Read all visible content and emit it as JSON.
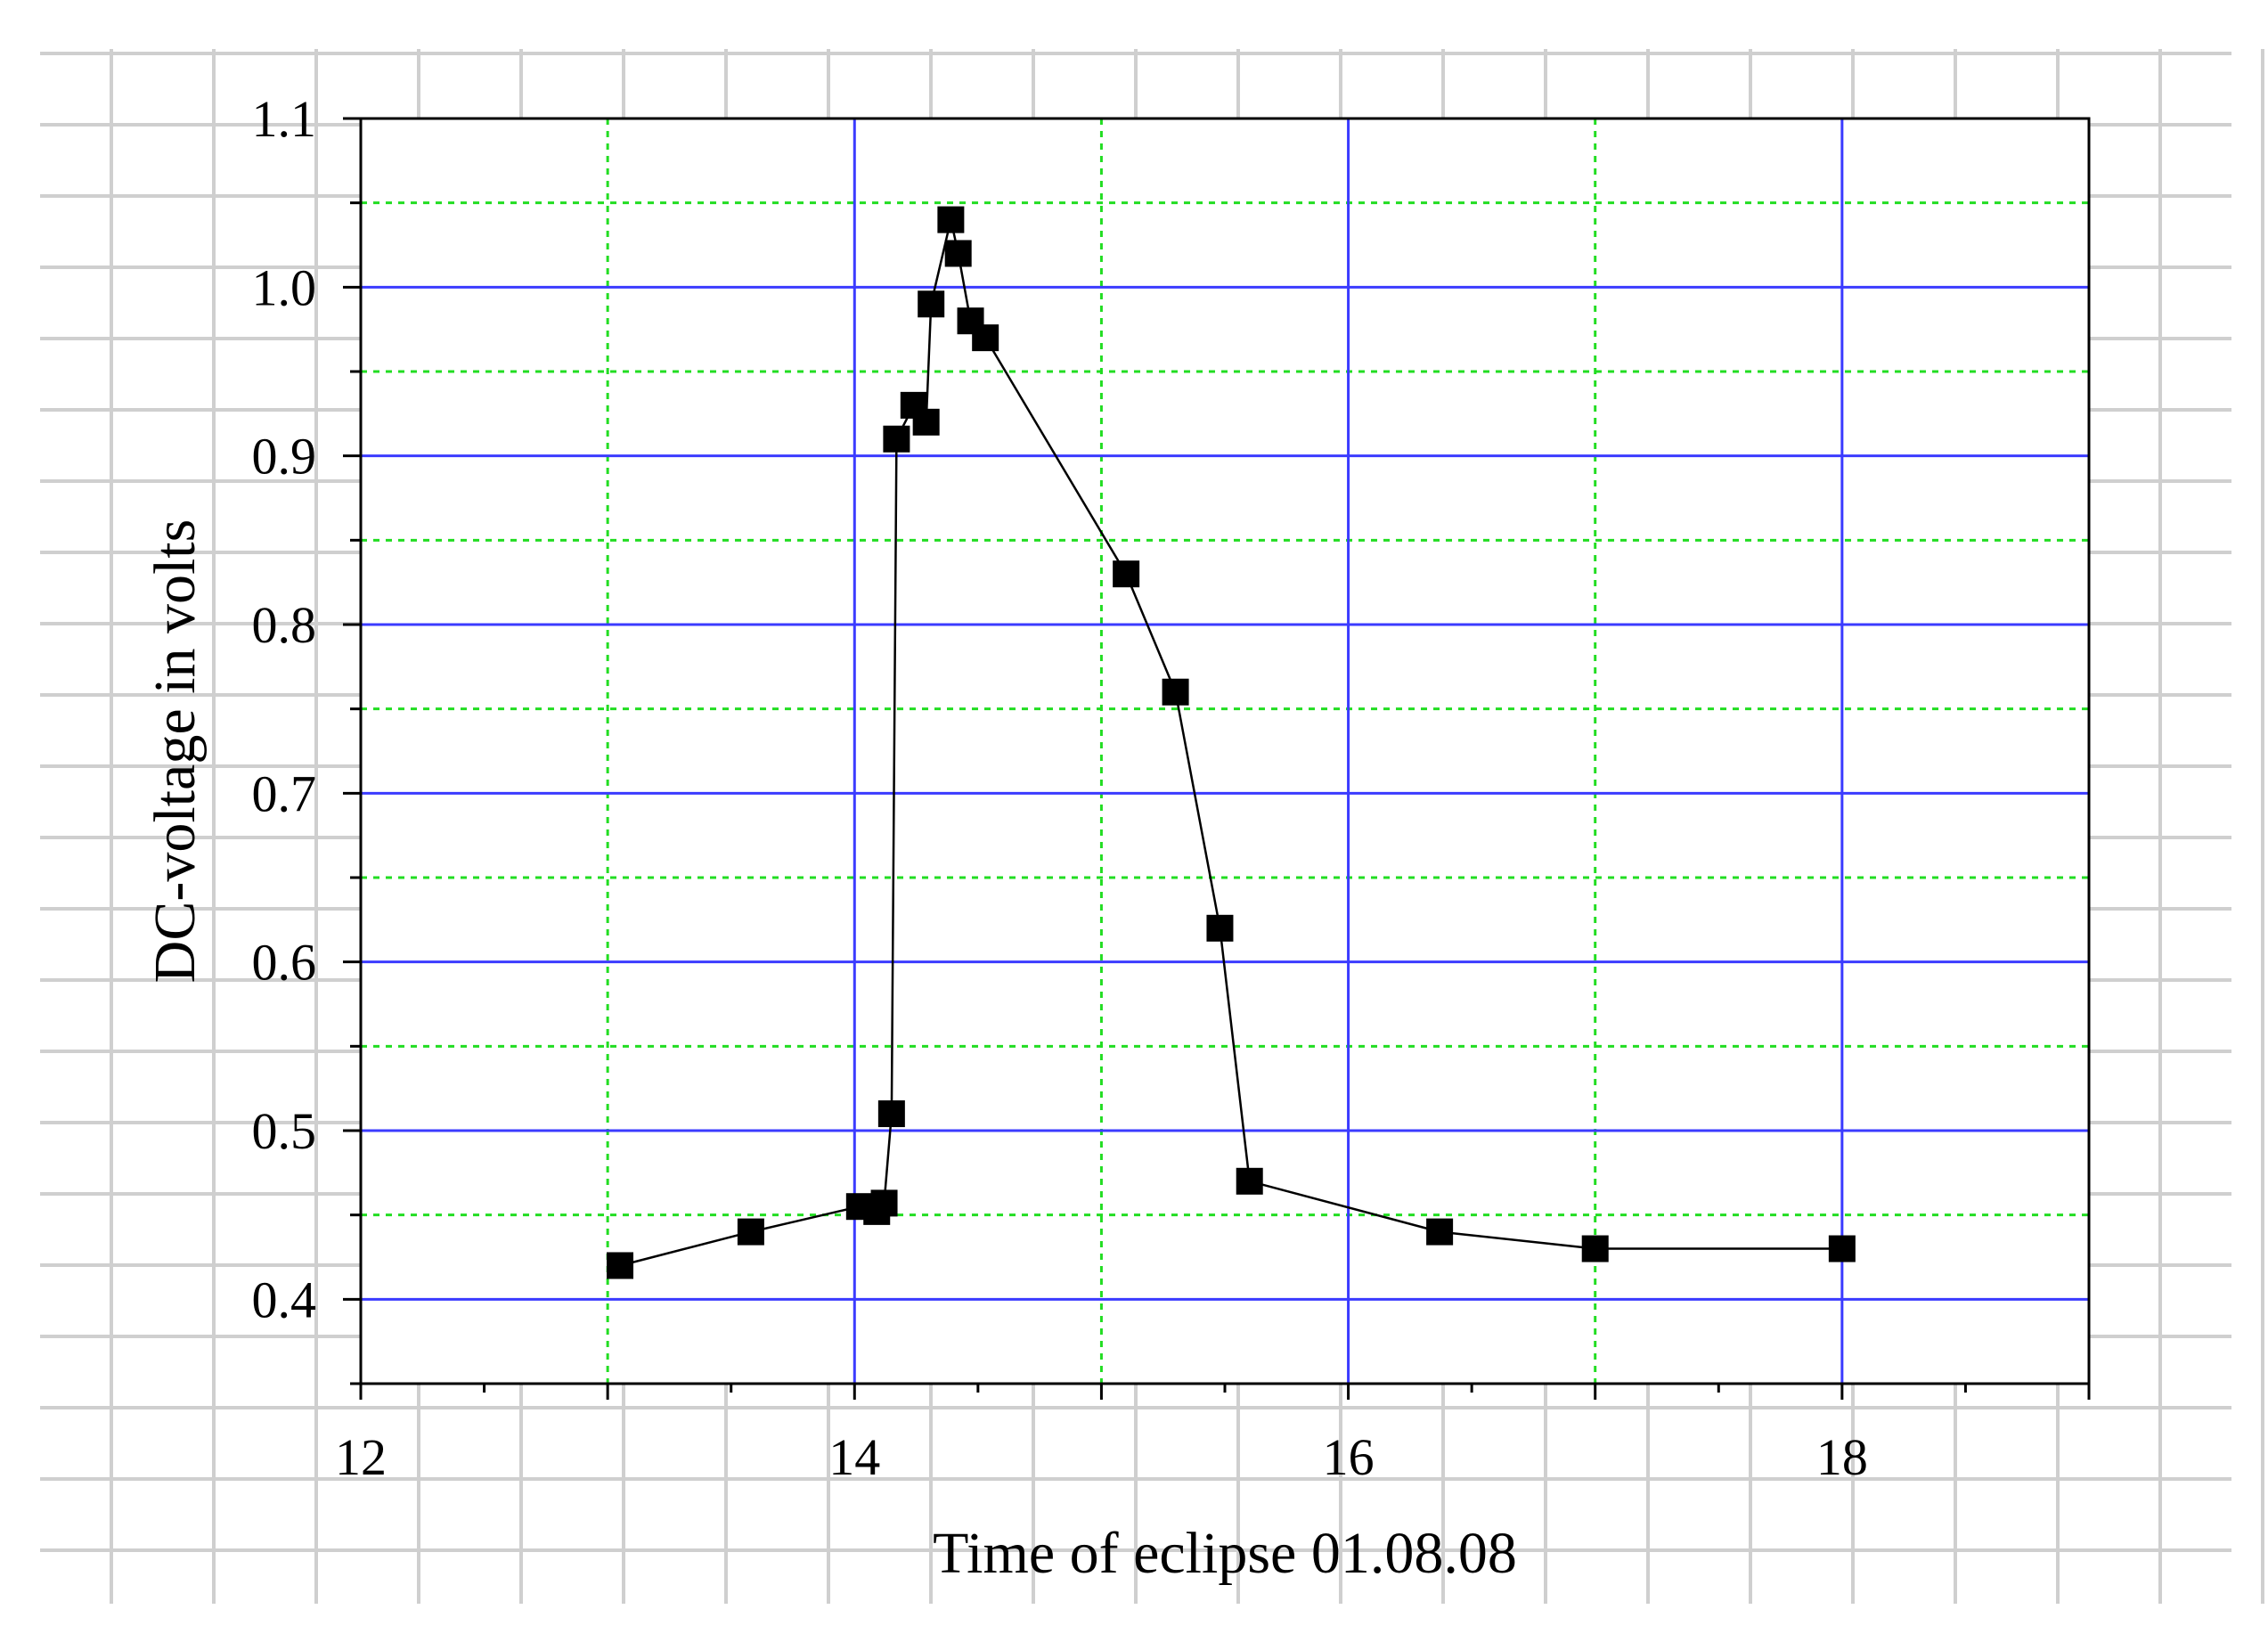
{
  "chart_data": {
    "type": "scatter",
    "title": "",
    "xlabel": "Time of eclipse 01.08.08",
    "ylabel": "DC-voltage in volts",
    "xlim": [
      12,
      19
    ],
    "ylim": [
      0.35,
      1.1
    ],
    "x_ticks": [
      {
        "value": 12,
        "label": "12"
      },
      {
        "value": 14,
        "label": "14"
      },
      {
        "value": 16,
        "label": "16"
      },
      {
        "value": 18,
        "label": "18"
      }
    ],
    "y_ticks": [
      {
        "value": 0.4,
        "label": "0.4"
      },
      {
        "value": 0.5,
        "label": "0.5"
      },
      {
        "value": 0.6,
        "label": "0.6"
      },
      {
        "value": 0.7,
        "label": "0.7"
      },
      {
        "value": 0.8,
        "label": "0.8"
      },
      {
        "value": 0.9,
        "label": "0.9"
      },
      {
        "value": 1.0,
        "label": "1.0"
      },
      {
        "value": 1.1,
        "label": "1.1"
      }
    ],
    "grid": true,
    "legend": "none",
    "colors": {
      "major_grid": "#3b3bff",
      "minor_grid": "#22dd22",
      "background_grid": "#cfcfcf",
      "marker": "#000000",
      "line": "#000000"
    },
    "series": [
      {
        "marker": "square",
        "connected": true,
        "x": [
          13.05,
          13.58,
          14.02,
          14.09,
          14.12,
          14.15,
          14.17,
          14.24,
          14.29,
          14.31,
          14.39,
          14.42,
          14.47,
          14.53,
          15.1,
          15.3,
          15.48,
          15.6,
          16.37,
          17.0,
          18.0
        ],
        "y": [
          0.42,
          0.44,
          0.455,
          0.452,
          0.457,
          0.51,
          0.91,
          0.93,
          0.92,
          0.99,
          1.04,
          1.02,
          0.98,
          0.97,
          0.83,
          0.76,
          0.62,
          0.47,
          0.44,
          0.43,
          0.43
        ]
      }
    ]
  }
}
